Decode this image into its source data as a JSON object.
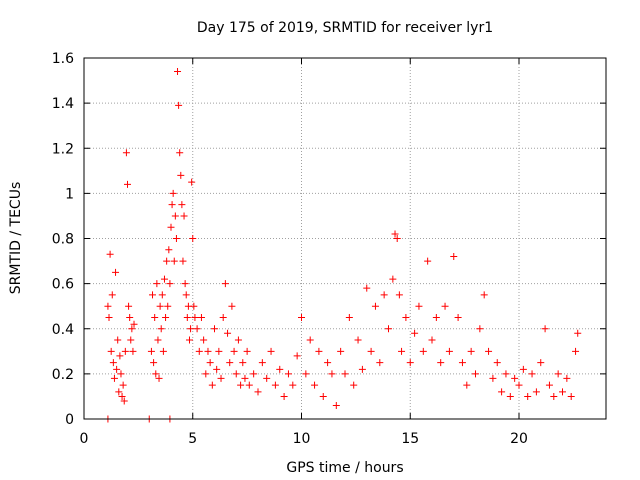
{
  "chart_data": {
    "type": "scatter",
    "title": "Day 175 of 2019, SRMTID for receiver lyr1",
    "xlabel": "GPS time / hours",
    "ylabel": "SRMTID / TECUs",
    "xlim": [
      0,
      24
    ],
    "ylim": [
      0,
      1.6
    ],
    "xticks": [
      0,
      5,
      10,
      15,
      20
    ],
    "yticks": [
      0,
      0.2,
      0.4,
      0.6,
      0.8,
      1,
      1.2,
      1.4,
      1.6
    ],
    "xtick_labels": [
      "0",
      "5",
      "10",
      "15",
      "20"
    ],
    "ytick_labels": [
      "0",
      "0.2",
      "0.4",
      "0.6",
      "0.8",
      "1",
      "1.2",
      "1.4",
      "1.6"
    ],
    "grid": true,
    "marker": "+",
    "color": "#ff0000",
    "series": [
      {
        "name": "SRMTID",
        "points": [
          [
            1.1,
            0.5
          ],
          [
            1.15,
            0.45
          ],
          [
            1.2,
            0.73
          ],
          [
            1.25,
            0.3
          ],
          [
            1.3,
            0.55
          ],
          [
            1.35,
            0.25
          ],
          [
            1.4,
            0.18
          ],
          [
            1.45,
            0.65
          ],
          [
            1.5,
            0.22
          ],
          [
            1.55,
            0.35
          ],
          [
            1.6,
            0.12
          ],
          [
            1.65,
            0.28
          ],
          [
            1.7,
            0.2
          ],
          [
            1.75,
            0.1
          ],
          [
            1.8,
            0.15
          ],
          [
            1.85,
            0.08
          ],
          [
            1.9,
            0.3
          ],
          [
            1.95,
            1.18
          ],
          [
            2.0,
            1.04
          ],
          [
            2.05,
            0.5
          ],
          [
            2.1,
            0.45
          ],
          [
            2.15,
            0.35
          ],
          [
            2.2,
            0.4
          ],
          [
            2.25,
            0.3
          ],
          [
            2.3,
            0.42
          ],
          [
            3.1,
            0.3
          ],
          [
            3.15,
            0.55
          ],
          [
            3.2,
            0.25
          ],
          [
            3.25,
            0.45
          ],
          [
            3.3,
            0.2
          ],
          [
            3.35,
            0.6
          ],
          [
            3.4,
            0.35
          ],
          [
            3.45,
            0.18
          ],
          [
            3.5,
            0.5
          ],
          [
            3.55,
            0.4
          ],
          [
            3.6,
            0.55
          ],
          [
            3.65,
            0.3
          ],
          [
            3.7,
            0.62
          ],
          [
            3.75,
            0.45
          ],
          [
            3.8,
            0.7
          ],
          [
            3.85,
            0.5
          ],
          [
            3.9,
            0.75
          ],
          [
            3.95,
            0.6
          ],
          [
            4.0,
            0.85
          ],
          [
            4.05,
            0.95
          ],
          [
            4.1,
            1.0
          ],
          [
            4.15,
            0.7
          ],
          [
            4.2,
            0.9
          ],
          [
            4.25,
            0.8
          ],
          [
            4.3,
            1.54
          ],
          [
            4.35,
            1.39
          ],
          [
            4.4,
            1.18
          ],
          [
            4.45,
            1.08
          ],
          [
            4.5,
            0.95
          ],
          [
            4.55,
            0.7
          ],
          [
            4.6,
            0.9
          ],
          [
            4.65,
            0.6
          ],
          [
            4.7,
            0.55
          ],
          [
            4.75,
            0.45
          ],
          [
            4.8,
            0.5
          ],
          [
            4.85,
            0.35
          ],
          [
            4.9,
            0.4
          ],
          [
            4.95,
            1.05
          ],
          [
            5.0,
            0.8
          ],
          [
            5.05,
            0.5
          ],
          [
            5.1,
            0.45
          ],
          [
            5.2,
            0.4
          ],
          [
            5.3,
            0.3
          ],
          [
            5.4,
            0.45
          ],
          [
            5.5,
            0.35
          ],
          [
            5.6,
            0.2
          ],
          [
            5.7,
            0.3
          ],
          [
            5.8,
            0.25
          ],
          [
            5.9,
            0.15
          ],
          [
            6.0,
            0.4
          ],
          [
            6.1,
            0.22
          ],
          [
            6.2,
            0.3
          ],
          [
            6.3,
            0.18
          ],
          [
            6.4,
            0.45
          ],
          [
            6.5,
            0.6
          ],
          [
            6.6,
            0.38
          ],
          [
            6.7,
            0.25
          ],
          [
            6.8,
            0.5
          ],
          [
            6.9,
            0.3
          ],
          [
            7.0,
            0.2
          ],
          [
            7.1,
            0.35
          ],
          [
            7.2,
            0.15
          ],
          [
            7.3,
            0.25
          ],
          [
            7.4,
            0.18
          ],
          [
            7.5,
            0.3
          ],
          [
            7.6,
            0.15
          ],
          [
            7.8,
            0.2
          ],
          [
            8.0,
            0.12
          ],
          [
            8.2,
            0.25
          ],
          [
            8.4,
            0.18
          ],
          [
            8.6,
            0.3
          ],
          [
            8.8,
            0.15
          ],
          [
            9.0,
            0.22
          ],
          [
            9.2,
            0.1
          ],
          [
            9.4,
            0.2
          ],
          [
            9.6,
            0.15
          ],
          [
            9.8,
            0.28
          ],
          [
            10.0,
            0.45
          ],
          [
            10.2,
            0.2
          ],
          [
            10.4,
            0.35
          ],
          [
            10.6,
            0.15
          ],
          [
            10.8,
            0.3
          ],
          [
            11.0,
            0.1
          ],
          [
            11.2,
            0.25
          ],
          [
            11.4,
            0.2
          ],
          [
            11.6,
            0.06
          ],
          [
            11.8,
            0.3
          ],
          [
            12.0,
            0.2
          ],
          [
            12.2,
            0.45
          ],
          [
            12.4,
            0.15
          ],
          [
            12.6,
            0.35
          ],
          [
            12.8,
            0.22
          ],
          [
            13.0,
            0.58
          ],
          [
            13.2,
            0.3
          ],
          [
            13.4,
            0.5
          ],
          [
            13.6,
            0.25
          ],
          [
            13.8,
            0.55
          ],
          [
            14.0,
            0.4
          ],
          [
            14.2,
            0.62
          ],
          [
            14.3,
            0.82
          ],
          [
            14.4,
            0.8
          ],
          [
            14.5,
            0.55
          ],
          [
            14.6,
            0.3
          ],
          [
            14.8,
            0.45
          ],
          [
            15.0,
            0.25
          ],
          [
            15.2,
            0.38
          ],
          [
            15.4,
            0.5
          ],
          [
            15.6,
            0.3
          ],
          [
            15.8,
            0.7
          ],
          [
            16.0,
            0.35
          ],
          [
            16.2,
            0.45
          ],
          [
            16.4,
            0.25
          ],
          [
            16.6,
            0.5
          ],
          [
            16.8,
            0.3
          ],
          [
            17.0,
            0.72
          ],
          [
            17.2,
            0.45
          ],
          [
            17.4,
            0.25
          ],
          [
            17.6,
            0.15
          ],
          [
            17.8,
            0.3
          ],
          [
            18.0,
            0.2
          ],
          [
            18.2,
            0.4
          ],
          [
            18.4,
            0.55
          ],
          [
            18.6,
            0.3
          ],
          [
            18.8,
            0.18
          ],
          [
            19.0,
            0.25
          ],
          [
            19.2,
            0.12
          ],
          [
            19.4,
            0.2
          ],
          [
            19.6,
            0.1
          ],
          [
            19.8,
            0.18
          ],
          [
            20.0,
            0.15
          ],
          [
            20.2,
            0.22
          ],
          [
            20.4,
            0.1
          ],
          [
            20.6,
            0.2
          ],
          [
            20.8,
            0.12
          ],
          [
            21.0,
            0.25
          ],
          [
            21.2,
            0.4
          ],
          [
            21.4,
            0.15
          ],
          [
            21.6,
            0.1
          ],
          [
            21.8,
            0.2
          ],
          [
            22.0,
            0.12
          ],
          [
            22.2,
            0.18
          ],
          [
            22.4,
            0.1
          ],
          [
            22.6,
            0.3
          ],
          [
            22.7,
            0.38
          ],
          [
            1.1,
            0.0
          ],
          [
            3.0,
            0.0
          ],
          [
            3.95,
            0.0
          ]
        ]
      }
    ]
  }
}
